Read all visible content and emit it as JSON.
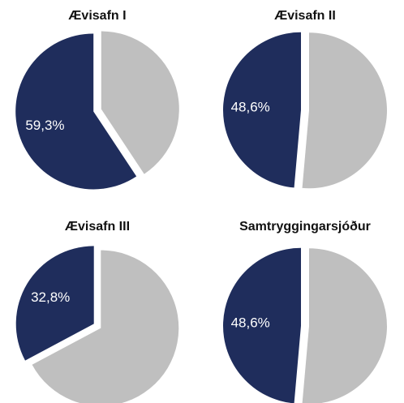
{
  "chart_data": [
    {
      "type": "pie",
      "title": "Ævisafn I",
      "values": [
        59.3,
        40.7
      ],
      "value_labels": [
        "59,3%",
        null
      ],
      "colors": [
        "#1f2d5c",
        "#bfbfbf"
      ]
    },
    {
      "type": "pie",
      "title": "Ævisafn II",
      "values": [
        48.6,
        51.4
      ],
      "value_labels": [
        "48,6%",
        null
      ],
      "colors": [
        "#1f2d5c",
        "#bfbfbf"
      ]
    },
    {
      "type": "pie",
      "title": "Ævisafn III",
      "values": [
        32.8,
        67.2
      ],
      "value_labels": [
        "32,8%",
        null
      ],
      "colors": [
        "#1f2d5c",
        "#bfbfbf"
      ]
    },
    {
      "type": "pie",
      "title": "Samtryggingarsjóður",
      "values": [
        48.6,
        51.4
      ],
      "value_labels": [
        "48,6%",
        null
      ],
      "colors": [
        "#1f2d5c",
        "#bfbfbf"
      ]
    }
  ]
}
